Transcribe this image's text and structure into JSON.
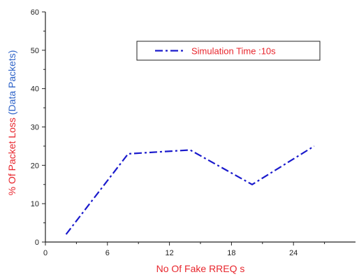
{
  "chart_data": {
    "type": "line",
    "x": [
      2,
      8,
      14,
      20,
      26
    ],
    "series": [
      {
        "name": "Simulation Time :10s",
        "values": [
          2,
          23,
          24,
          15,
          25
        ],
        "color": "#1a1acc",
        "line_style": "dash-dot"
      }
    ],
    "xlabel": "No Of Fake RREQ s",
    "ylabel_parts": [
      {
        "text": "% Of Packet Loss ",
        "color": "#e8262d"
      },
      {
        "text": "(Data Packets)",
        "color": "#2e63c8"
      }
    ],
    "xlim": [
      0,
      30
    ],
    "ylim": [
      0,
      60
    ],
    "xticks": [
      0,
      6,
      12,
      18,
      24
    ],
    "yticks": [
      0,
      10,
      20,
      30,
      40,
      50,
      60
    ],
    "grid": false,
    "legend": {
      "placement": "upper-right",
      "text_color": "#e8262d"
    },
    "axis_title_color": "#e8262d"
  }
}
